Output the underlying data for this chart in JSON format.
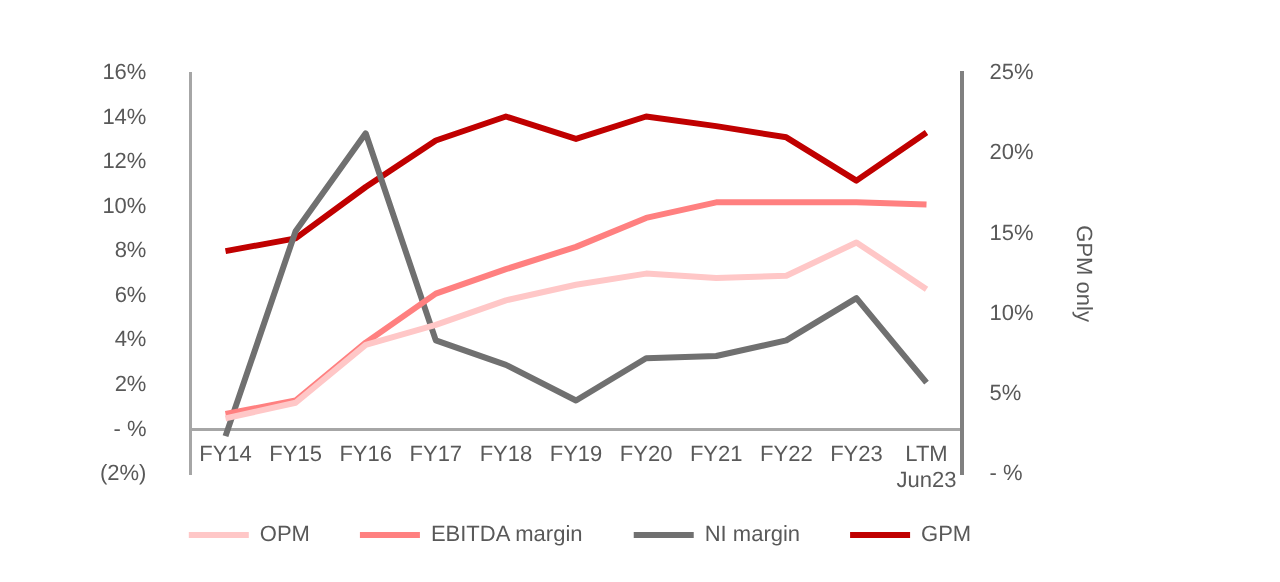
{
  "chart_data": {
    "type": "line",
    "categories": [
      "FY14",
      "FY15",
      "FY16",
      "FY17",
      "FY18",
      "FY19",
      "FY20",
      "FY21",
      "FY22",
      "FY23",
      "LTM\nJun23"
    ],
    "series": [
      {
        "name": "OPM",
        "color": "#ffc7c7",
        "values": [
          0.5,
          1.2,
          3.8,
          4.7,
          5.8,
          6.5,
          7.0,
          6.8,
          6.9,
          8.4,
          6.3
        ]
      },
      {
        "name": "EBITDA margin",
        "color": "#ff8080",
        "values": [
          0.7,
          1.3,
          3.9,
          6.1,
          7.2,
          8.2,
          9.5,
          10.2,
          10.2,
          10.2,
          10.1
        ]
      },
      {
        "name": "NI margin",
        "color": "#707070",
        "values": [
          -0.3,
          8.9,
          13.3,
          4.0,
          2.9,
          1.3,
          3.2,
          3.3,
          4.0,
          5.9,
          2.1
        ]
      },
      {
        "name": "GPM",
        "color": "#c00000",
        "axis": "y2",
        "values": [
          13.9,
          14.7,
          17.9,
          20.8,
          22.3,
          20.9,
          22.3,
          21.7,
          21.0,
          18.3,
          21.3
        ]
      }
    ],
    "ylim": [
      -2,
      16
    ],
    "yticks": [
      {
        "value": -2,
        "label": "(2%)"
      },
      {
        "value": 0,
        "label": "- %"
      },
      {
        "value": 2,
        "label": "2%"
      },
      {
        "value": 4,
        "label": "4%"
      },
      {
        "value": 6,
        "label": "6%"
      },
      {
        "value": 8,
        "label": "8%"
      },
      {
        "value": 10,
        "label": "10%"
      },
      {
        "value": 12,
        "label": "12%"
      },
      {
        "value": 14,
        "label": "14%"
      },
      {
        "value": 16,
        "label": "16%"
      }
    ],
    "y2lim": [
      0,
      25
    ],
    "y2ticks": [
      {
        "value": 0,
        "label": "- %"
      },
      {
        "value": 5,
        "label": "5%"
      },
      {
        "value": 10,
        "label": "10%"
      },
      {
        "value": 15,
        "label": "15%"
      },
      {
        "value": 20,
        "label": "20%"
      },
      {
        "value": 25,
        "label": "25%"
      }
    ],
    "y2label": "GPM only",
    "legend": "bottom",
    "grid": false,
    "marker": "none",
    "line_style": "solid"
  }
}
